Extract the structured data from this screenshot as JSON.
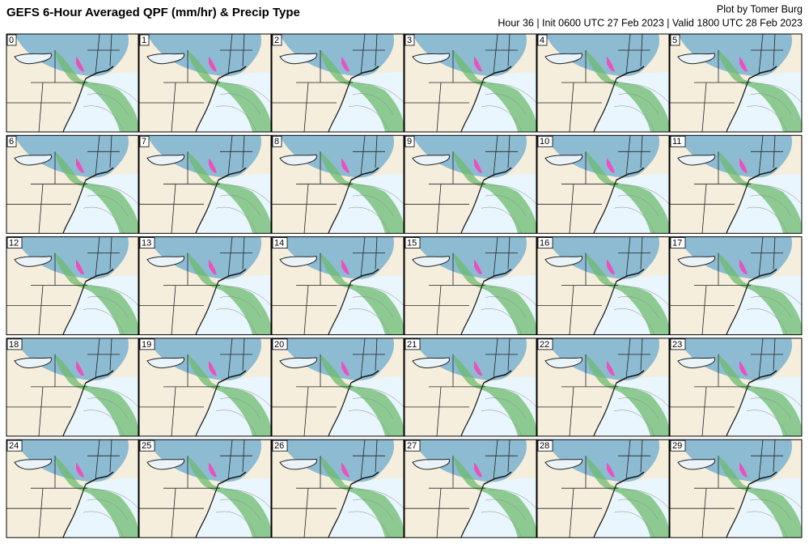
{
  "header": {
    "title": "GEFS 6-Hour Averaged QPF (mm/hr) & Precip Type",
    "credit": "Plot by Tomer Burg",
    "subtitle": "Hour 36 | Init 0600 UTC 27 Feb 2023 | Valid 1800 UTC 28 Feb 2023"
  },
  "panels": [
    {
      "label": "0"
    },
    {
      "label": "1"
    },
    {
      "label": "2"
    },
    {
      "label": "3"
    },
    {
      "label": "4"
    },
    {
      "label": "5"
    },
    {
      "label": "6"
    },
    {
      "label": "7"
    },
    {
      "label": "8"
    },
    {
      "label": "9"
    },
    {
      "label": "10"
    },
    {
      "label": "11"
    },
    {
      "label": "12"
    },
    {
      "label": "13"
    },
    {
      "label": "14"
    },
    {
      "label": "15"
    },
    {
      "label": "16"
    },
    {
      "label": "17"
    },
    {
      "label": "18"
    },
    {
      "label": "19"
    },
    {
      "label": "20"
    },
    {
      "label": "21"
    },
    {
      "label": "22"
    },
    {
      "label": "23"
    },
    {
      "label": "24"
    },
    {
      "label": "25"
    },
    {
      "label": "26"
    },
    {
      "label": "27"
    },
    {
      "label": "28"
    },
    {
      "label": "29"
    }
  ]
}
